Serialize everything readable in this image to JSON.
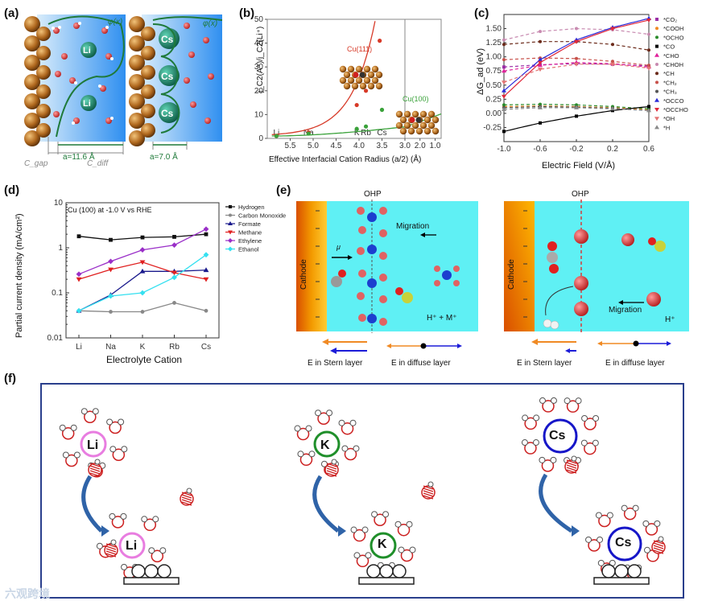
{
  "panel_labels": {
    "a": "(a)",
    "b": "(b)",
    "c": "(c)",
    "d": "(d)",
    "e": "(e)",
    "f": "(f)"
  },
  "panel_a": {
    "left": {
      "cation": "Li",
      "width_label": "a=11.6 Å",
      "phi": "φ(x)",
      "c_gap": "C_gap",
      "c_diff": "C_diff"
    },
    "right": {
      "cation": "Cs",
      "width_label": "a=7.0 Å",
      "phi": "φ(x)"
    }
  },
  "panel_e": {
    "ohp": "OHP",
    "cathode": "Cathode",
    "migration": "Migration",
    "mu": "μ",
    "ions_left": "H⁺ + M⁺",
    "ions_right": "H⁺",
    "stern": "E in Stern layer",
    "diffuse": "E in diffuse layer"
  },
  "panel_f": {
    "cations": [
      "Li",
      "K",
      "Cs"
    ],
    "colors": [
      "#e87de0",
      "#1f8f2a",
      "#1616c8"
    ]
  },
  "watermark": "六观跨境",
  "chart_data": [
    {
      "id": "b",
      "type": "scatter",
      "title": "",
      "xlabel": "Effective Interfacial Cation Radius (a/2) (Å)",
      "ylabel": "j_C2(A⁺)/j_C2(Li⁺)",
      "xlim": [
        6.0,
        0.6
      ],
      "ylim": [
        0,
        50
      ],
      "xticks": [
        5.5,
        5.0,
        4.5,
        4.0,
        3.5,
        3.0,
        2.0,
        1.0
      ],
      "xtick_labels": [
        "5.5",
        "5.0",
        "4.5",
        "4.0",
        "3.5",
        "3.0",
        "2.0",
        "1.0"
      ],
      "yticks": [
        0,
        10,
        20,
        30,
        40,
        50
      ],
      "cation_marks": [
        {
          "name": "Li",
          "x": 5.8
        },
        {
          "name": "Na",
          "x": 5.1
        },
        {
          "name": "K",
          "x": 4.05
        },
        {
          "name": "Rb",
          "x": 3.85
        },
        {
          "name": "Cs",
          "x": 3.5
        }
      ],
      "series": [
        {
          "name": "Cu(111)",
          "color": "#d73a28",
          "points": [
            [
              5.8,
              1
            ],
            [
              5.1,
              2.5
            ],
            [
              4.05,
              14
            ],
            [
              3.85,
              20
            ],
            [
              3.55,
              41
            ]
          ]
        },
        {
          "name": "Cu(100)",
          "color": "#3aa23a",
          "points": [
            [
              5.8,
              1
            ],
            [
              5.1,
              2
            ],
            [
              4.05,
              4
            ],
            [
              3.85,
              5
            ],
            [
              3.5,
              12
            ]
          ]
        }
      ]
    },
    {
      "id": "c",
      "type": "line",
      "xlabel": "Electric Field (V/Å)",
      "ylabel": "ΔG_ad (eV)",
      "xlim": [
        -1.0,
        0.6
      ],
      "ylim": [
        -0.5,
        1.75
      ],
      "xticks": [
        -1.0,
        -0.6,
        -0.2,
        0.2,
        0.6
      ],
      "yticks": [
        -0.5,
        -0.25,
        0.0,
        0.25,
        0.5,
        0.75,
        1.0,
        1.25,
        1.5,
        1.75
      ],
      "ytick_labels": [
        "",
        "-0.25",
        "0.00",
        "0.25",
        "0.50",
        "0.75",
        "1.00",
        "1.25",
        "1.50",
        ""
      ],
      "series": [
        {
          "name": "*CO₂",
          "color": "#9b2fa6",
          "marker": "square",
          "dashed": true,
          "y": [
            0.82,
            0.86,
            0.88,
            0.87,
            0.84
          ]
        },
        {
          "name": "*COOH",
          "color": "#f08a24",
          "marker": "circle",
          "dashed": true,
          "y": [
            0.12,
            0.13,
            0.12,
            0.1,
            0.07
          ]
        },
        {
          "name": "*OCHO",
          "color": "#2a8b2a",
          "marker": "circle",
          "dashed": true,
          "y": [
            0.15,
            0.16,
            0.15,
            0.12,
            0.08
          ]
        },
        {
          "name": "*CO",
          "color": "#000000",
          "marker": "square",
          "dashed": false,
          "y": [
            -0.32,
            -0.17,
            -0.05,
            0.05,
            0.12
          ]
        },
        {
          "name": "*CHO",
          "color": "#e0219b",
          "marker": "triangle",
          "dashed": true,
          "y": [
            0.75,
            0.85,
            0.9,
            0.88,
            0.82
          ]
        },
        {
          "name": "*CHOH",
          "color": "#c88ab0",
          "marker": "circle",
          "dashed": true,
          "y": [
            1.3,
            1.45,
            1.5,
            1.48,
            1.4
          ]
        },
        {
          "name": "*CH",
          "color": "#6b2a1a",
          "marker": "circle",
          "dashed": true,
          "y": [
            1.22,
            1.27,
            1.27,
            1.22,
            1.12
          ]
        },
        {
          "name": "*CH₂",
          "color": "#c7504a",
          "marker": "circle",
          "dashed": true,
          "y": [
            0.95,
            0.98,
            0.97,
            0.92,
            0.85
          ]
        },
        {
          "name": "*CH₃",
          "color": "#555555",
          "marker": "circle",
          "dashed": true,
          "y": [
            0.1,
            0.12,
            0.11,
            0.09,
            0.05
          ]
        },
        {
          "name": "*OCCO",
          "color": "#2b2bd8",
          "marker": "triangle",
          "dashed": false,
          "y": [
            0.4,
            0.95,
            1.3,
            1.52,
            1.68
          ]
        },
        {
          "name": "*OCCHO",
          "color": "#e0283a",
          "marker": "triangle-down",
          "dashed": false,
          "y": [
            0.3,
            0.9,
            1.27,
            1.5,
            1.65
          ]
        },
        {
          "name": "*OH",
          "color": "#e37575",
          "marker": "triangle-down",
          "dashed": true,
          "y": [
            0.55,
            0.78,
            0.87,
            0.87,
            0.8
          ]
        },
        {
          "name": "*H",
          "color": "#8a8a8a",
          "marker": "triangle",
          "dashed": true,
          "y": [
            0.07,
            0.1,
            0.1,
            0.08,
            0.05
          ]
        }
      ],
      "x": [
        -1.0,
        -0.6,
        -0.2,
        0.2,
        0.6
      ]
    },
    {
      "id": "d",
      "type": "line",
      "title": "Cu (100) at -1.0 V vs RHE",
      "xlabel": "Electrolyte Cation",
      "ylabel": "Partial current density (mA/cm²)",
      "categories": [
        "Li",
        "Na",
        "K",
        "Rb",
        "Cs"
      ],
      "yscale": "log",
      "ylim": [
        0.01,
        10
      ],
      "yticks": [
        0.01,
        0.1,
        1,
        10
      ],
      "ytick_labels": [
        "0.01",
        "0.1",
        "1",
        "10"
      ],
      "series": [
        {
          "name": "Hydrogen",
          "color": "#111111",
          "marker": "square",
          "values": [
            1.8,
            1.5,
            1.7,
            1.75,
            2.0
          ]
        },
        {
          "name": "Carbon Monoxide",
          "color": "#888888",
          "marker": "circle",
          "values": [
            0.04,
            0.038,
            0.038,
            0.06,
            0.04
          ]
        },
        {
          "name": "Formate",
          "color": "#1a1a8c",
          "marker": "triangle",
          "values": [
            0.04,
            0.09,
            0.3,
            0.3,
            0.32
          ]
        },
        {
          "name": "Methane",
          "color": "#e02020",
          "marker": "triangle-down",
          "values": [
            0.2,
            0.33,
            0.48,
            0.28,
            0.2
          ]
        },
        {
          "name": "Ethylene",
          "color": "#9a2fc8",
          "marker": "diamond",
          "values": [
            0.26,
            0.5,
            0.9,
            1.15,
            2.6
          ]
        },
        {
          "name": "Ethanol",
          "color": "#35e0f0",
          "marker": "diamond",
          "values": [
            0.04,
            0.085,
            0.1,
            0.22,
            0.7
          ]
        }
      ]
    }
  ]
}
